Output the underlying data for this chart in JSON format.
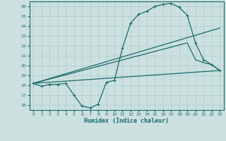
{
  "xlabel": "Humidex (Indice chaleur)",
  "xlim": [
    -0.5,
    23.5
  ],
  "ylim": [
    15.5,
    26.5
  ],
  "yticks": [
    16,
    17,
    18,
    19,
    20,
    21,
    22,
    23,
    24,
    25,
    26
  ],
  "xticks": [
    0,
    1,
    2,
    3,
    4,
    5,
    6,
    7,
    8,
    9,
    10,
    11,
    12,
    13,
    14,
    15,
    16,
    17,
    18,
    19,
    20,
    21,
    22,
    23
  ],
  "bg_color": "#cce0e0",
  "grid_color": "#aacccc",
  "line_color": "#1a6b6b",
  "curve1_x": [
    0,
    1,
    2,
    3,
    4,
    5,
    6,
    7,
    8,
    9,
    10,
    11,
    12,
    13,
    14,
    15,
    16,
    17,
    18,
    19,
    20,
    21,
    22,
    23
  ],
  "curve1_y": [
    18.2,
    17.9,
    18.1,
    18.1,
    18.2,
    17.0,
    15.9,
    15.7,
    16.1,
    18.3,
    18.5,
    21.8,
    24.3,
    25.2,
    25.5,
    26.0,
    26.2,
    26.3,
    25.9,
    25.1,
    22.3,
    20.6,
    20.1,
    19.5
  ],
  "curve2_x": [
    0,
    19,
    20,
    21,
    22,
    23
  ],
  "curve2_y": [
    18.2,
    22.3,
    20.6,
    20.3,
    20.1,
    19.5
  ],
  "curve3_x": [
    0,
    23
  ],
  "curve3_y": [
    18.2,
    23.8
  ],
  "curve4_x": [
    0,
    23
  ],
  "curve4_y": [
    18.2,
    19.5
  ]
}
